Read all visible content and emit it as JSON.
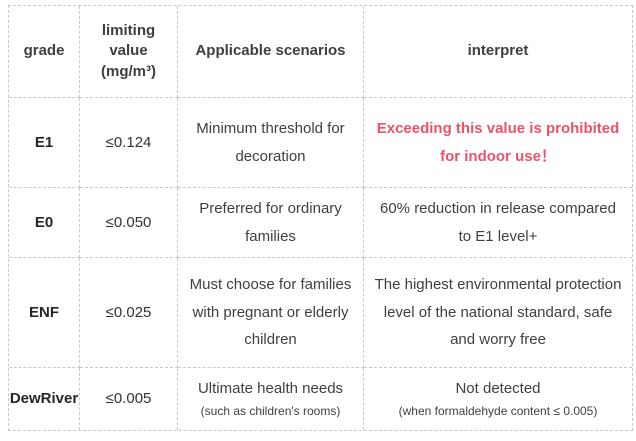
{
  "colors": {
    "background": "#ffffff",
    "border": "#c9c9c9",
    "text": "#3f3f3f",
    "grade_text": "#262626",
    "accent": "#e9536b"
  },
  "table": {
    "headers": {
      "grade": "grade",
      "limit_lines": [
        "limiting",
        "value",
        "(mg/m³)"
      ],
      "scenario": "Applicable scenarios",
      "interpret": "interpret"
    },
    "rows": [
      {
        "grade": "E1",
        "limit": "≤0.124",
        "scenario": "Minimum threshold for decoration",
        "interpret": "Exceeding this value is prohibited for indoor use！"
      },
      {
        "grade": "E0",
        "limit": "≤0.050",
        "scenario": "Preferred for ordinary families",
        "interpret": "60% reduction in release compared to E1 level+"
      },
      {
        "grade": "ENF",
        "limit": "≤0.025",
        "scenario": "Must choose for families with pregnant or elderly children",
        "interpret": "The highest environmental protection level of the national standard, safe and worry free"
      },
      {
        "grade": "DewRiver",
        "limit": "≤0.005",
        "scenario": "Ultimate health needs",
        "scenario_note": "(such as children's rooms)",
        "interpret": "Not detected",
        "interpret_note": "(when formaldehyde content ≤ 0.005)"
      }
    ]
  }
}
